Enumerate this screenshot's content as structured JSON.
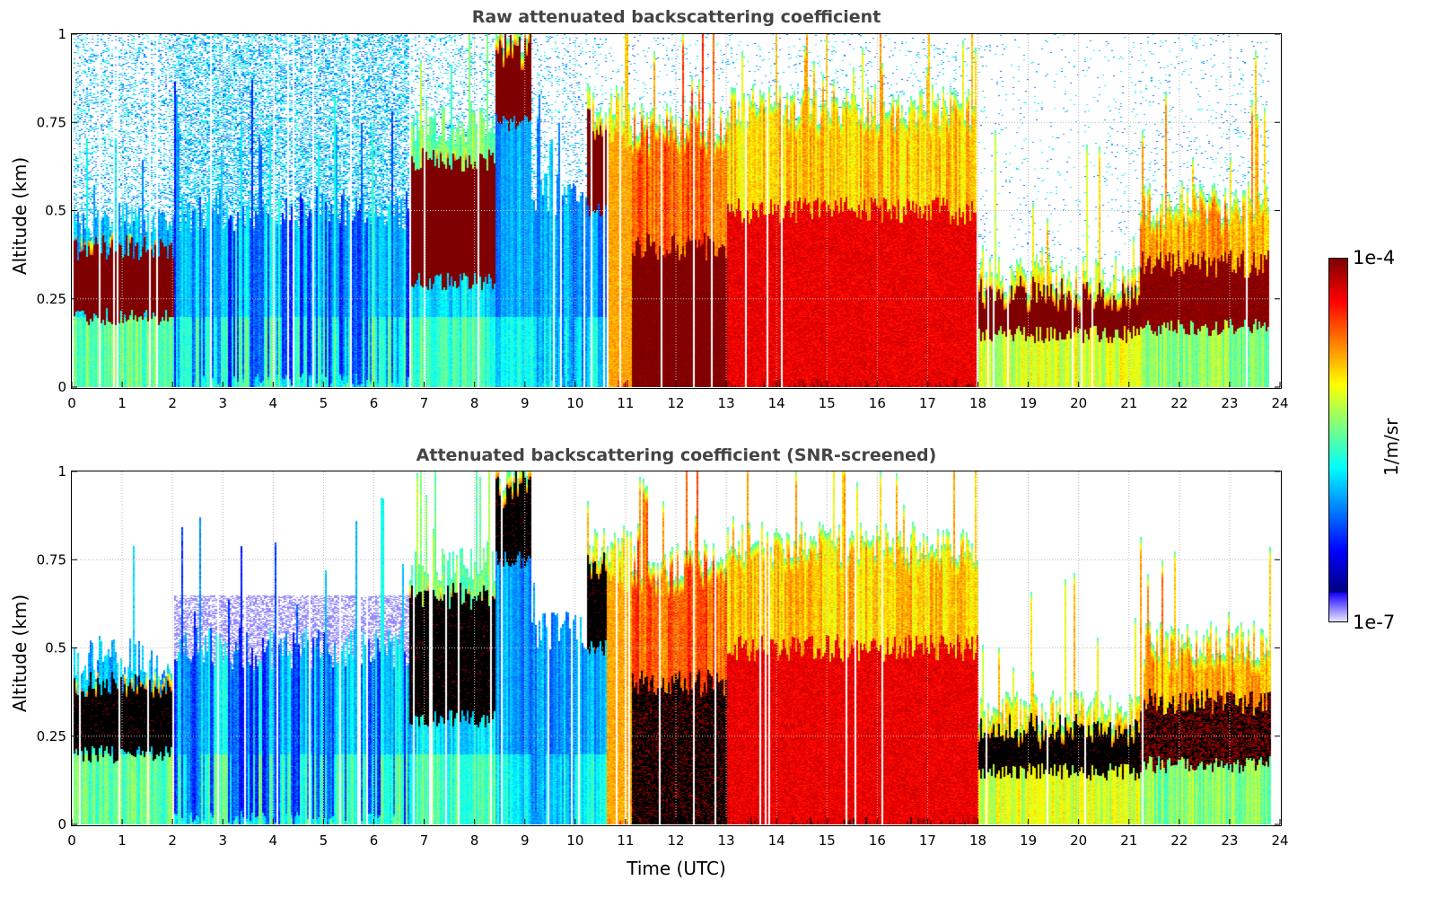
{
  "chart_data": [
    {
      "type": "heatmap",
      "title": "Raw attenuated backscattering coefficient",
      "xlabel": "",
      "ylabel": "Altitude (km)",
      "xlim": [
        0,
        24
      ],
      "ylim": [
        0,
        1
      ],
      "xticks": [
        "0",
        "1",
        "2",
        "3",
        "4",
        "5",
        "6",
        "7",
        "8",
        "9",
        "10",
        "11",
        "12",
        "13",
        "14",
        "15",
        "16",
        "17",
        "18",
        "19",
        "20",
        "21",
        "22",
        "23",
        "24"
      ],
      "yticks": [
        "0",
        "0.25",
        "0.5",
        "0.75",
        "1"
      ],
      "grid": true,
      "screened": false
    },
    {
      "type": "heatmap",
      "title": "Attenuated backscattering coefficient (SNR-screened)",
      "xlabel": "Time (UTC)",
      "ylabel": "Altitude (km)",
      "xlim": [
        0,
        24
      ],
      "ylim": [
        0,
        1
      ],
      "xticks": [
        "0",
        "1",
        "2",
        "3",
        "4",
        "5",
        "6",
        "7",
        "8",
        "9",
        "10",
        "11",
        "12",
        "13",
        "14",
        "15",
        "16",
        "17",
        "18",
        "19",
        "20",
        "21",
        "22",
        "23",
        "24"
      ],
      "yticks": [
        "0",
        "0.25",
        "0.5",
        "0.75",
        "1"
      ],
      "grid": true,
      "screened": true
    }
  ],
  "colorbar": {
    "label": "1/m/sr",
    "max_label": "1e-4",
    "min_label": "1e-7",
    "log_min": -7,
    "log_max": -4,
    "colormap": "jet",
    "saturated_color": "#000000"
  },
  "layers": [
    {
      "t0": 0,
      "t1": 2,
      "top": 0.47,
      "lo": 0.2,
      "hi": 0.4,
      "below": -5.7,
      "dense": -3.9,
      "above": -5.9,
      "noise": 0.3
    },
    {
      "t0": 2,
      "t1": 6.7,
      "top": 0.5,
      "lo": 0,
      "hi": 0,
      "below": -5.8,
      "dense": -5.8,
      "above": -6.2,
      "noise": 0.55
    },
    {
      "t0": 6.7,
      "t1": 8.4,
      "top": 0.75,
      "lo": 0.3,
      "hi": 0.65,
      "below": -5.8,
      "dense": -3.9,
      "above": -5.4,
      "noise": 0.2
    },
    {
      "t0": 8.4,
      "t1": 9.1,
      "top": 1,
      "lo": 0.75,
      "hi": 1,
      "below": -6,
      "dense": -3.9,
      "above": -5.5,
      "noise": 0.1
    },
    {
      "t0": 9.1,
      "t1": 10.2,
      "top": 0.55,
      "lo": 0,
      "hi": 0,
      "below": -6,
      "dense": -6,
      "above": -6,
      "noise": 0.15
    },
    {
      "t0": 10.2,
      "t1": 10.6,
      "top": 0.8,
      "lo": 0.5,
      "hi": 0.75,
      "below": -6,
      "dense": -3.9,
      "above": -5,
      "noise": 0.1
    },
    {
      "t0": 10.6,
      "t1": 11.1,
      "top": 0.8,
      "lo": 0,
      "hi": 0.7,
      "below": -4.8,
      "dense": -4.8,
      "above": -5,
      "noise": 0.05
    },
    {
      "t0": 11.1,
      "t1": 13,
      "top": 0.75,
      "lo": 0,
      "hi": 0.4,
      "below": -4.1,
      "dense": -3.95,
      "above": -4.6,
      "noise": 0.05
    },
    {
      "t0": 13,
      "t1": 18,
      "top": 0.8,
      "lo": 0,
      "hi": 0.5,
      "below": -4.4,
      "dense": -4.3,
      "above": -4.9,
      "noise": 0.05
    },
    {
      "t0": 18,
      "t1": 21.2,
      "top": 0.32,
      "lo": 0.15,
      "hi": 0.28,
      "below": -5.4,
      "dense": -3.9,
      "above": -5,
      "noise": 0.03
    },
    {
      "t0": 21.2,
      "t1": 23.8,
      "top": 0.52,
      "lo": 0.17,
      "hi": 0.35,
      "below": -5.6,
      "dense": -4.0,
      "above": -4.8,
      "noise": 0.05
    }
  ]
}
